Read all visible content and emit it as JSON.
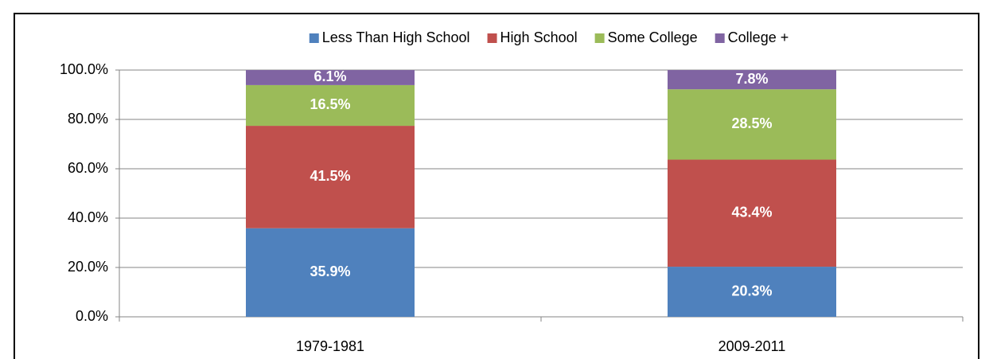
{
  "chart_data": {
    "type": "stacked_bar",
    "categories": [
      "1979-1981",
      "2009-2011"
    ],
    "series": [
      {
        "name": "Less Than High School",
        "color": "#4f81bd",
        "values": [
          35.9,
          20.3
        ],
        "value_labels": [
          "35.9%",
          "20.3%"
        ]
      },
      {
        "name": "High School",
        "color": "#c0504d",
        "values": [
          41.5,
          43.4
        ],
        "value_labels": [
          "41.5%",
          "43.4%"
        ]
      },
      {
        "name": "Some College",
        "color": "#9bbb59",
        "values": [
          16.5,
          28.5
        ],
        "value_labels": [
          "16.5%",
          "28.5%"
        ]
      },
      {
        "name": "College +",
        "color": "#8064a2",
        "values": [
          6.1,
          7.8
        ],
        "value_labels": [
          "6.1%",
          "7.8%"
        ]
      }
    ],
    "ylim": [
      0,
      100
    ],
    "yticks": [
      {
        "value": 0,
        "label": "0.0%"
      },
      {
        "value": 20,
        "label": "20.0%"
      },
      {
        "value": 40,
        "label": "40.0%"
      },
      {
        "value": 60,
        "label": "60.0%"
      },
      {
        "value": 80,
        "label": "80.0%"
      },
      {
        "value": 100,
        "label": "100.0%"
      }
    ],
    "grid": true,
    "legend": "top"
  }
}
